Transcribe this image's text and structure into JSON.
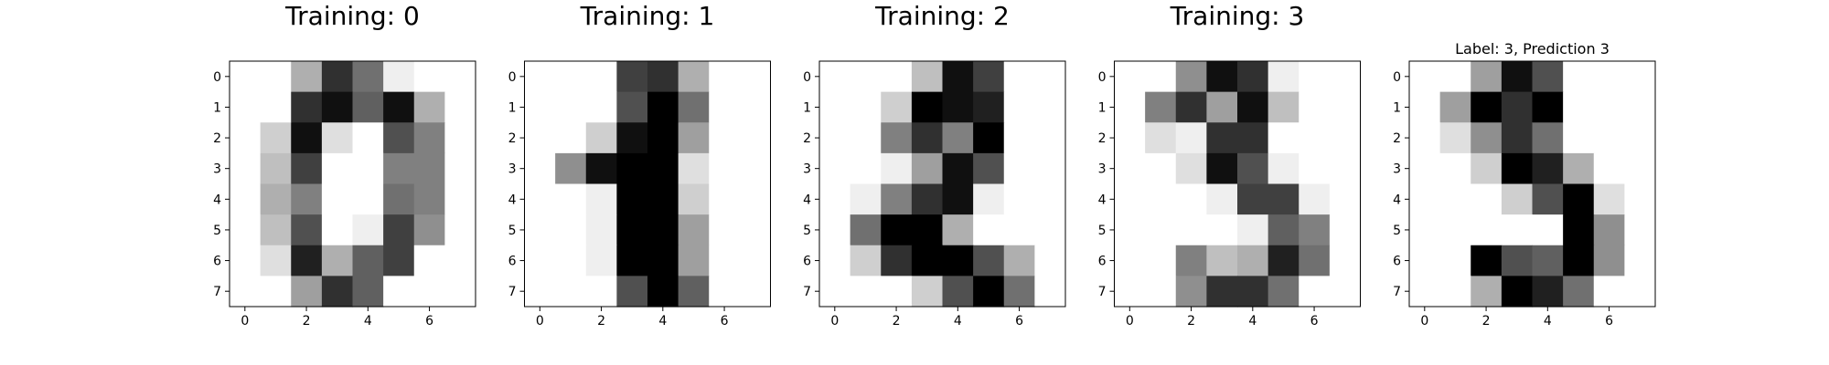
{
  "chart_data": [
    {
      "type": "heatmap",
      "title": "Training: 0",
      "colormap": "gray_r",
      "xticks": [
        0,
        2,
        4,
        6
      ],
      "yticks": [
        0,
        1,
        2,
        3,
        4,
        5,
        6,
        7
      ],
      "values": [
        [
          0,
          0,
          5,
          13,
          9,
          1,
          0,
          0
        ],
        [
          0,
          0,
          13,
          15,
          10,
          15,
          5,
          0
        ],
        [
          0,
          3,
          15,
          2,
          0,
          11,
          8,
          0
        ],
        [
          0,
          4,
          12,
          0,
          0,
          8,
          8,
          0
        ],
        [
          0,
          5,
          8,
          0,
          0,
          9,
          8,
          0
        ],
        [
          0,
          4,
          11,
          0,
          1,
          12,
          7,
          0
        ],
        [
          0,
          2,
          14,
          5,
          10,
          12,
          0,
          0
        ],
        [
          0,
          0,
          6,
          13,
          10,
          0,
          0,
          0
        ]
      ]
    },
    {
      "type": "heatmap",
      "title": "Training: 1",
      "colormap": "gray_r",
      "xticks": [
        0,
        2,
        4,
        6
      ],
      "yticks": [
        0,
        1,
        2,
        3,
        4,
        5,
        6,
        7
      ],
      "values": [
        [
          0,
          0,
          0,
          12,
          13,
          5,
          0,
          0
        ],
        [
          0,
          0,
          0,
          11,
          16,
          9,
          0,
          0
        ],
        [
          0,
          0,
          3,
          15,
          16,
          6,
          0,
          0
        ],
        [
          0,
          7,
          15,
          16,
          16,
          2,
          0,
          0
        ],
        [
          0,
          0,
          1,
          16,
          16,
          3,
          0,
          0
        ],
        [
          0,
          0,
          1,
          16,
          16,
          6,
          0,
          0
        ],
        [
          0,
          0,
          1,
          16,
          16,
          6,
          0,
          0
        ],
        [
          0,
          0,
          0,
          11,
          16,
          10,
          0,
          0
        ]
      ]
    },
    {
      "type": "heatmap",
      "title": "Training: 2",
      "colormap": "gray_r",
      "xticks": [
        0,
        2,
        4,
        6
      ],
      "yticks": [
        0,
        1,
        2,
        3,
        4,
        5,
        6,
        7
      ],
      "values": [
        [
          0,
          0,
          0,
          4,
          15,
          12,
          0,
          0
        ],
        [
          0,
          0,
          3,
          16,
          15,
          14,
          0,
          0
        ],
        [
          0,
          0,
          8,
          13,
          8,
          16,
          0,
          0
        ],
        [
          0,
          0,
          1,
          6,
          15,
          11,
          0,
          0
        ],
        [
          0,
          1,
          8,
          13,
          15,
          1,
          0,
          0
        ],
        [
          0,
          9,
          16,
          16,
          5,
          0,
          0,
          0
        ],
        [
          0,
          3,
          13,
          16,
          16,
          11,
          5,
          0
        ],
        [
          0,
          0,
          0,
          3,
          11,
          16,
          9,
          0
        ]
      ]
    },
    {
      "type": "heatmap",
      "title": "Training: 3",
      "colormap": "gray_r",
      "xticks": [
        0,
        2,
        4,
        6
      ],
      "yticks": [
        0,
        1,
        2,
        3,
        4,
        5,
        6,
        7
      ],
      "values": [
        [
          0,
          0,
          7,
          15,
          13,
          1,
          0,
          0
        ],
        [
          0,
          8,
          13,
          6,
          15,
          4,
          0,
          0
        ],
        [
          0,
          2,
          1,
          13,
          13,
          0,
          0,
          0
        ],
        [
          0,
          0,
          2,
          15,
          11,
          1,
          0,
          0
        ],
        [
          0,
          0,
          0,
          1,
          12,
          12,
          1,
          0
        ],
        [
          0,
          0,
          0,
          0,
          1,
          10,
          8,
          0
        ],
        [
          0,
          0,
          8,
          4,
          5,
          14,
          9,
          0
        ],
        [
          0,
          0,
          7,
          13,
          13,
          9,
          0,
          0
        ]
      ]
    },
    {
      "type": "heatmap",
      "title": "Label: 3, Prediction 3",
      "colormap": "gray_r",
      "xticks": [
        0,
        2,
        4,
        6
      ],
      "yticks": [
        0,
        1,
        2,
        3,
        4,
        5,
        6,
        7
      ],
      "values": [
        [
          0,
          0,
          6,
          15,
          11,
          0,
          0,
          0
        ],
        [
          0,
          6,
          16,
          13,
          16,
          0,
          0,
          0
        ],
        [
          0,
          2,
          7,
          13,
          9,
          0,
          0,
          0
        ],
        [
          0,
          0,
          3,
          16,
          14,
          5,
          0,
          0
        ],
        [
          0,
          0,
          0,
          3,
          11,
          16,
          2,
          0
        ],
        [
          0,
          0,
          0,
          0,
          0,
          16,
          7,
          0
        ],
        [
          0,
          0,
          16,
          11,
          10,
          16,
          7,
          0
        ],
        [
          0,
          0,
          5,
          16,
          14,
          9,
          0,
          0
        ]
      ]
    }
  ]
}
